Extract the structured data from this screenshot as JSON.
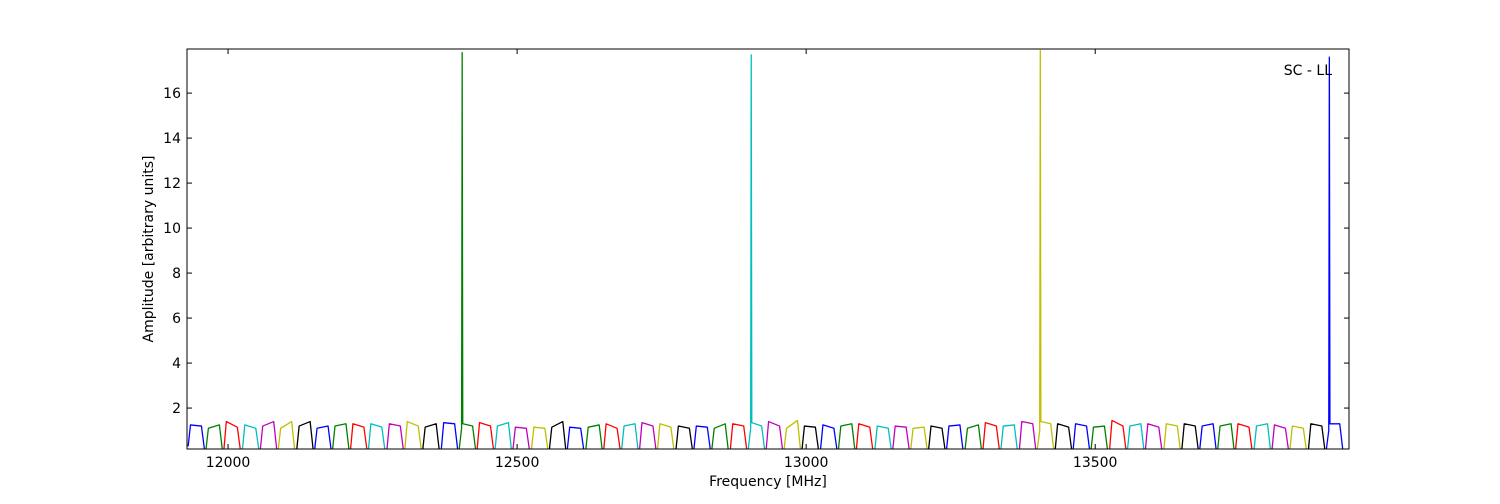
{
  "chart_data": {
    "type": "line",
    "annotation": "SC - LL",
    "x_label": "Frequency [MHz]",
    "y_label": "Amplitude [arbitrary units]",
    "xlim": [
      11929,
      13939
    ],
    "ylim": [
      0.18,
      17.96
    ],
    "xticks": [
      12000,
      12500,
      13000,
      13500
    ],
    "yticks": [
      2,
      4,
      6,
      8,
      10,
      12,
      14,
      16
    ],
    "grid": false,
    "series": [
      {
        "color": "#0000ff",
        "x": [
          11931,
          11935,
          11954,
          11959,
          null,
          12150,
          12154,
          12173,
          12178,
          null,
          12369,
          12373,
          12392,
          12397,
          null,
          12587,
          12591,
          12610,
          12615,
          null,
          12806,
          12810,
          12829,
          12834,
          null,
          13025,
          13029,
          13048,
          13053,
          null,
          13243,
          13247,
          13266,
          13271,
          null,
          13462,
          13466,
          13485,
          13490,
          null,
          13681,
          13685,
          13704,
          13709,
          null,
          13900,
          13904,
          13905,
          13906,
          13923,
          13928
        ],
        "values": [
          0.3,
          1.25,
          1.2,
          0.2,
          null,
          0.2,
          1.1,
          1.2,
          0.2,
          null,
          0.2,
          1.35,
          1.3,
          0.2,
          null,
          0.2,
          1.15,
          1.1,
          0.2,
          null,
          0.2,
          1.2,
          1.15,
          0.2,
          null,
          0.2,
          1.25,
          1.1,
          0.2,
          null,
          0.2,
          1.2,
          1.25,
          0.2,
          null,
          0.2,
          1.3,
          1.2,
          0.2,
          null,
          0.2,
          1.2,
          1.3,
          0.2,
          null,
          0.2,
          1.0,
          17.6,
          1.3,
          1.3,
          0.2
        ]
      },
      {
        "color": "#008000",
        "x": [
          11962,
          11966,
          11985,
          11990,
          null,
          12181,
          12185,
          12204,
          12209,
          null,
          12400,
          12404,
          12405,
          12406,
          12423,
          12428,
          null,
          12619,
          12623,
          12642,
          12647,
          null,
          12837,
          12841,
          12860,
          12865,
          null,
          13056,
          13060,
          13079,
          13084,
          null,
          13275,
          13279,
          13298,
          13303,
          null,
          13493,
          13497,
          13516,
          13521,
          null,
          13712,
          13716,
          13735,
          13740
        ],
        "values": [
          0.2,
          1.1,
          1.25,
          0.2,
          null,
          0.2,
          1.2,
          1.3,
          0.2,
          null,
          0.2,
          1.1,
          17.8,
          1.3,
          1.2,
          0.2,
          null,
          0.2,
          1.15,
          1.25,
          0.2,
          null,
          0.2,
          1.1,
          1.3,
          0.2,
          null,
          0.2,
          1.2,
          1.3,
          0.2,
          null,
          0.2,
          1.1,
          1.25,
          0.2,
          null,
          0.2,
          1.15,
          1.2,
          0.2,
          null,
          0.2,
          1.2,
          1.3,
          0.2
        ]
      },
      {
        "color": "#ff0000",
        "x": [
          11993,
          11997,
          12016,
          12021,
          null,
          12212,
          12216,
          12235,
          12240,
          null,
          12431,
          12435,
          12454,
          12459,
          null,
          12650,
          12654,
          12673,
          12678,
          null,
          12869,
          12873,
          12892,
          12897,
          null,
          13087,
          13091,
          13110,
          13115,
          null,
          13306,
          13310,
          13329,
          13334,
          null,
          13525,
          13529,
          13548,
          13553,
          null,
          13743,
          13747,
          13766,
          13771
        ],
        "values": [
          0.2,
          1.4,
          1.15,
          0.2,
          null,
          0.2,
          1.3,
          1.15,
          0.2,
          null,
          0.2,
          1.35,
          1.2,
          0.2,
          null,
          0.2,
          1.3,
          1.1,
          0.2,
          null,
          0.2,
          1.3,
          1.2,
          0.2,
          null,
          0.2,
          1.3,
          1.15,
          0.2,
          null,
          0.2,
          1.35,
          1.2,
          0.2,
          null,
          0.2,
          1.45,
          1.2,
          0.2,
          null,
          0.2,
          1.3,
          1.15,
          0.2
        ]
      },
      {
        "color": "#00bfbf",
        "x": [
          12025,
          12029,
          12048,
          12053,
          null,
          12243,
          12247,
          12266,
          12271,
          null,
          12462,
          12466,
          12485,
          12490,
          null,
          12681,
          12685,
          12704,
          12709,
          null,
          12900,
          12904,
          12905,
          12906,
          12923,
          12928,
          null,
          13119,
          13123,
          13142,
          13147,
          null,
          13337,
          13341,
          13360,
          13365,
          null,
          13556,
          13560,
          13579,
          13584,
          null,
          13775,
          13779,
          13798,
          13803
        ],
        "values": [
          0.2,
          1.25,
          1.1,
          0.2,
          null,
          0.2,
          1.3,
          1.15,
          0.2,
          null,
          0.2,
          1.2,
          1.35,
          0.2,
          null,
          0.2,
          1.2,
          1.3,
          0.2,
          null,
          0.2,
          1.1,
          17.7,
          1.35,
          1.2,
          0.2,
          null,
          0.2,
          1.2,
          1.1,
          0.2,
          null,
          0.2,
          1.2,
          1.25,
          0.2,
          null,
          0.2,
          1.2,
          1.3,
          0.2,
          null,
          0.2,
          1.2,
          1.3,
          0.2
        ]
      },
      {
        "color": "#bf00bf",
        "x": [
          12056,
          12060,
          12079,
          12084,
          null,
          12275,
          12279,
          12298,
          12303,
          null,
          12493,
          12497,
          12516,
          12521,
          null,
          12712,
          12716,
          12735,
          12740,
          null,
          12931,
          12935,
          12954,
          12959,
          null,
          13150,
          13154,
          13173,
          13178,
          null,
          13369,
          13373,
          13392,
          13397,
          null,
          13587,
          13591,
          13610,
          13615,
          null,
          13806,
          13810,
          13829,
          13834
        ],
        "values": [
          0.2,
          1.2,
          1.4,
          0.2,
          null,
          0.2,
          1.3,
          1.2,
          0.2,
          null,
          0.2,
          1.15,
          1.1,
          0.2,
          null,
          0.2,
          1.35,
          1.2,
          0.2,
          null,
          0.2,
          1.4,
          1.2,
          0.2,
          null,
          0.2,
          1.2,
          1.15,
          0.2,
          null,
          0.2,
          1.4,
          1.3,
          0.2,
          null,
          0.2,
          1.3,
          1.15,
          0.2,
          null,
          0.2,
          1.25,
          1.1,
          0.2
        ]
      },
      {
        "color": "#bfbf00",
        "x": [
          12087,
          12091,
          12110,
          12115,
          null,
          12306,
          12310,
          12329,
          12334,
          null,
          12525,
          12529,
          12548,
          12553,
          null,
          12743,
          12747,
          12766,
          12771,
          null,
          12962,
          12966,
          12985,
          12990,
          null,
          13181,
          13185,
          13204,
          13209,
          null,
          13400,
          13404,
          13405,
          13406,
          13423,
          13428,
          null,
          13619,
          13623,
          13642,
          13647,
          null,
          13837,
          13841,
          13860,
          13865
        ],
        "values": [
          0.2,
          1.1,
          1.4,
          0.2,
          null,
          0.2,
          1.4,
          1.2,
          0.2,
          null,
          0.2,
          1.15,
          1.1,
          0.2,
          null,
          0.2,
          1.3,
          1.15,
          0.2,
          null,
          0.2,
          1.1,
          1.45,
          0.2,
          null,
          0.2,
          1.1,
          1.15,
          0.2,
          null,
          0.2,
          1.0,
          17.9,
          1.4,
          1.3,
          0.2,
          null,
          0.2,
          1.3,
          1.2,
          0.2,
          null,
          0.2,
          1.2,
          1.1,
          0.2
        ]
      },
      {
        "color": "#000000",
        "x": [
          12119,
          12123,
          12142,
          12147,
          null,
          12337,
          12341,
          12360,
          12365,
          null,
          12556,
          12560,
          12579,
          12584,
          null,
          12775,
          12779,
          12798,
          12803,
          null,
          12993,
          12997,
          13016,
          13021,
          null,
          13212,
          13216,
          13235,
          13240,
          null,
          13431,
          13435,
          13454,
          13459,
          null,
          13650,
          13654,
          13673,
          13678,
          null,
          13869,
          13873,
          13892,
          13897
        ],
        "values": [
          0.2,
          1.2,
          1.4,
          0.2,
          null,
          0.2,
          1.15,
          1.3,
          0.2,
          null,
          0.2,
          1.15,
          1.4,
          0.2,
          null,
          0.2,
          1.2,
          1.1,
          0.2,
          null,
          0.2,
          1.2,
          1.15,
          0.2,
          null,
          0.2,
          1.2,
          1.1,
          0.2,
          null,
          0.2,
          1.3,
          1.15,
          0.2,
          null,
          0.2,
          1.3,
          1.2,
          0.2,
          null,
          0.2,
          1.3,
          1.2,
          0.2
        ]
      }
    ]
  }
}
